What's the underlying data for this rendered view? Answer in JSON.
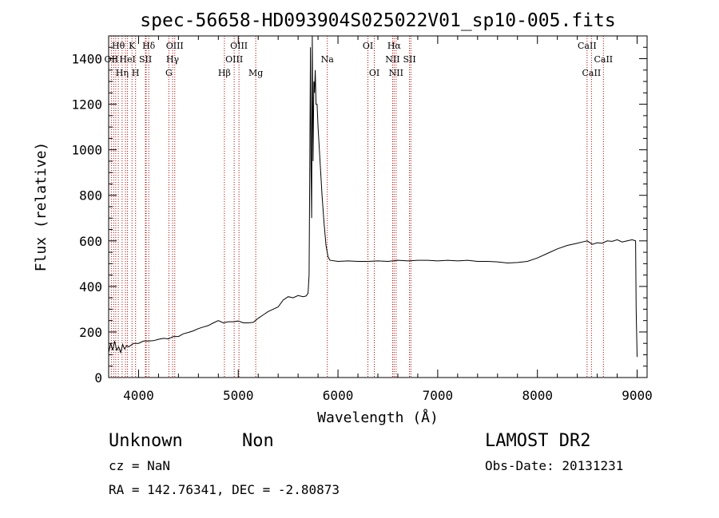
{
  "chart_data": {
    "type": "line",
    "title": "spec-56658-HD093904S025022V01_sp10-005.fits",
    "xlabel": "Wavelength (Å)",
    "ylabel": "Flux (relative)",
    "xlim": [
      3700,
      9100
    ],
    "ylim": [
      0,
      1500
    ],
    "x_ticks": [
      4000,
      5000,
      6000,
      7000,
      8000,
      9000
    ],
    "y_ticks": [
      0,
      200,
      400,
      600,
      800,
      1000,
      1200,
      1400
    ],
    "x_tick_labels": [
      "4000",
      "5000",
      "6000",
      "7000",
      "8000",
      "9000"
    ],
    "y_tick_labels": [
      "0",
      "200",
      "400",
      "600",
      "800",
      "1000",
      "1200",
      "1400"
    ],
    "grid": false,
    "line_color": "#000000",
    "marker_color": "#b30000",
    "series": [
      {
        "values": [
          [
            3700,
            110
          ],
          [
            3720,
            150
          ],
          [
            3740,
            120
          ],
          [
            3760,
            160
          ],
          [
            3780,
            120
          ],
          [
            3800,
            135
          ],
          [
            3820,
            110
          ],
          [
            3840,
            145
          ],
          [
            3860,
            125
          ],
          [
            3880,
            140
          ],
          [
            3900,
            135
          ],
          [
            3950,
            150
          ],
          [
            4000,
            150
          ],
          [
            4050,
            160
          ],
          [
            4100,
            160
          ],
          [
            4150,
            162
          ],
          [
            4200,
            168
          ],
          [
            4250,
            172
          ],
          [
            4300,
            170
          ],
          [
            4350,
            180
          ],
          [
            4400,
            180
          ],
          [
            4450,
            192
          ],
          [
            4500,
            198
          ],
          [
            4550,
            205
          ],
          [
            4600,
            215
          ],
          [
            4650,
            222
          ],
          [
            4700,
            228
          ],
          [
            4750,
            240
          ],
          [
            4800,
            250
          ],
          [
            4850,
            240
          ],
          [
            4900,
            245
          ],
          [
            4950,
            245
          ],
          [
            5000,
            248
          ],
          [
            5050,
            240
          ],
          [
            5100,
            240
          ],
          [
            5150,
            242
          ],
          [
            5200,
            260
          ],
          [
            5250,
            275
          ],
          [
            5300,
            290
          ],
          [
            5350,
            300
          ],
          [
            5400,
            310
          ],
          [
            5450,
            340
          ],
          [
            5500,
            355
          ],
          [
            5550,
            350
          ],
          [
            5600,
            360
          ],
          [
            5650,
            355
          ],
          [
            5680,
            358
          ],
          [
            5700,
            370
          ],
          [
            5710,
            450
          ],
          [
            5718,
            1000
          ],
          [
            5724,
            1450
          ],
          [
            5730,
            900
          ],
          [
            5736,
            700
          ],
          [
            5742,
            1500
          ],
          [
            5750,
            950
          ],
          [
            5758,
            1300
          ],
          [
            5765,
            1250
          ],
          [
            5772,
            1350
          ],
          [
            5780,
            1200
          ],
          [
            5790,
            1200
          ],
          [
            5800,
            1100
          ],
          [
            5820,
            950
          ],
          [
            5840,
            800
          ],
          [
            5860,
            680
          ],
          [
            5880,
            580
          ],
          [
            5900,
            530
          ],
          [
            5920,
            515
          ],
          [
            6000,
            510
          ],
          [
            6100,
            512
          ],
          [
            6200,
            510
          ],
          [
            6300,
            510
          ],
          [
            6400,
            512
          ],
          [
            6500,
            510
          ],
          [
            6600,
            515
          ],
          [
            6700,
            512
          ],
          [
            6800,
            515
          ],
          [
            6900,
            515
          ],
          [
            7000,
            512
          ],
          [
            7100,
            515
          ],
          [
            7200,
            512
          ],
          [
            7300,
            515
          ],
          [
            7400,
            510
          ],
          [
            7500,
            510
          ],
          [
            7600,
            508
          ],
          [
            7700,
            503
          ],
          [
            7800,
            505
          ],
          [
            7900,
            510
          ],
          [
            8000,
            525
          ],
          [
            8100,
            545
          ],
          [
            8200,
            565
          ],
          [
            8300,
            580
          ],
          [
            8400,
            590
          ],
          [
            8450,
            595
          ],
          [
            8500,
            600
          ],
          [
            8550,
            585
          ],
          [
            8600,
            592
          ],
          [
            8650,
            590
          ],
          [
            8700,
            600
          ],
          [
            8750,
            598
          ],
          [
            8800,
            605
          ],
          [
            8850,
            595
          ],
          [
            8900,
            600
          ],
          [
            8950,
            605
          ],
          [
            8985,
            600
          ],
          [
            8990,
            300
          ],
          [
            9000,
            90
          ]
        ]
      }
    ],
    "spectral_lines": [
      {
        "label": "Hθ",
        "wavelength": 3797,
        "row": 0
      },
      {
        "label": "K",
        "wavelength": 3934,
        "row": 0
      },
      {
        "label": "Hδ",
        "wavelength": 4102,
        "row": 0
      },
      {
        "label": "OIII",
        "wavelength": 4363,
        "row": 0
      },
      {
        "label": "OIII",
        "wavelength": 5007,
        "row": 0
      },
      {
        "label": "OI",
        "wavelength": 6300,
        "row": 0
      },
      {
        "label": "Hα",
        "wavelength": 6563,
        "row": 0
      },
      {
        "label": "CaII",
        "wavelength": 8498,
        "row": 0
      },
      {
        "label": "OII",
        "wavelength": 3727,
        "row": 1
      },
      {
        "label": "HeI",
        "wavelength": 3889,
        "row": 1
      },
      {
        "label": "SII",
        "wavelength": 4069,
        "row": 1
      },
      {
        "label": "Hγ",
        "wavelength": 4341,
        "row": 1
      },
      {
        "label": "OIII",
        "wavelength": 4959,
        "row": 1
      },
      {
        "label": "Na",
        "wavelength": 5893,
        "row": 1
      },
      {
        "label": "NII",
        "wavelength": 6548,
        "row": 1
      },
      {
        "label": "SII",
        "wavelength": 6717,
        "row": 1
      },
      {
        "label": "CaII",
        "wavelength": 8662,
        "row": 1
      },
      {
        "label": "Hη",
        "wavelength": 3835,
        "row": 2
      },
      {
        "label": "H",
        "wavelength": 3970,
        "row": 2
      },
      {
        "label": "G",
        "wavelength": 4304,
        "row": 2
      },
      {
        "label": "Hβ",
        "wavelength": 4861,
        "row": 2
      },
      {
        "label": "Mg",
        "wavelength": 5175,
        "row": 2
      },
      {
        "label": "OI",
        "wavelength": 6364,
        "row": 2
      },
      {
        "label": "NII",
        "wavelength": 6583,
        "row": 2
      },
      {
        "label": "CaII",
        "wavelength": 8542,
        "row": 2
      }
    ],
    "extra_marker_lines": [
      3750,
      3771,
      3869,
      4076,
      6731
    ]
  },
  "info": {
    "object_class": "Unknown",
    "object_subclass": "Non",
    "survey": "LAMOST DR2",
    "redshift": "cz = NaN",
    "obs_date": "Obs-Date: 20131231",
    "coordinates": "RA = 142.76341, DEC =  -2.80873"
  }
}
